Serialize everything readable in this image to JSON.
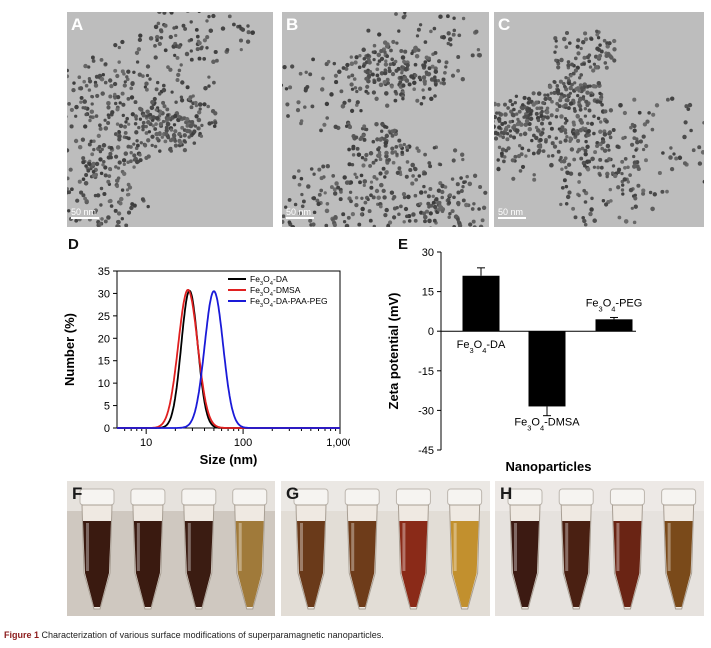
{
  "tem_panels": [
    {
      "label": "A",
      "scale": "50 nm"
    },
    {
      "label": "B",
      "scale": "50 nm"
    },
    {
      "label": "C",
      "scale": "50 nm"
    }
  ],
  "colors": {
    "black": "#000000",
    "red": "#e02020",
    "blue": "#1a1ad8",
    "zeta_bar": "#000000"
  },
  "chart_data": [
    {
      "panel": "D",
      "type": "line",
      "xscale": "log",
      "xlabel": "Size (nm)",
      "ylabel": "Number (%)",
      "xlim": [
        5,
        1000
      ],
      "ylim": [
        0,
        35
      ],
      "xticks": [
        10,
        100,
        1000
      ],
      "xtick_labels": [
        "10",
        "100",
        "1,000"
      ],
      "yticks": [
        0,
        5,
        10,
        15,
        20,
        25,
        30,
        35
      ],
      "legend_position": "top-right",
      "series": [
        {
          "name": "Fe3O4-DA",
          "legend": {
            "a": "Fe",
            "s1": "3",
            "b": "O",
            "s2": "4",
            "c": "-DA"
          },
          "color": "#000000",
          "peak": 28,
          "height": 30.6,
          "sigma": 0.085
        },
        {
          "name": "Fe3O4-DMSA",
          "legend": {
            "a": "Fe",
            "s1": "3",
            "b": "O",
            "s2": "4",
            "c": "-DMSA"
          },
          "color": "#e02020",
          "peak": 27,
          "height": 30.8,
          "sigma": 0.1
        },
        {
          "name": "Fe3O4-DA-PAA-PEG",
          "legend": {
            "a": "Fe",
            "s1": "3",
            "b": "O",
            "s2": "4",
            "c": "-DA-PAA-PEG"
          },
          "color": "#1a1ad8",
          "peak": 50,
          "height": 30.5,
          "sigma": 0.095
        }
      ]
    },
    {
      "panel": "E",
      "type": "bar",
      "xlabel": "Nanoparticles",
      "ylabel": "Zeta potential (mV)",
      "ylim": [
        -45,
        30
      ],
      "yticks": [
        -45,
        -30,
        -15,
        0,
        15,
        30
      ],
      "categories": [
        "Fe3O4-DA",
        "Fe3O4-DMSA",
        "Fe3O4-PEG"
      ],
      "values": [
        21,
        -28.5,
        4.5
      ],
      "errors": [
        3,
        3.5,
        0.7
      ],
      "bar_labels": [
        {
          "a": "Fe",
          "s1": "3",
          "b": "O",
          "s2": "4",
          "c": "-DA"
        },
        {
          "a": "Fe",
          "s1": "3",
          "b": "O",
          "s2": "4",
          "c": "-DMSA"
        },
        {
          "a": "Fe",
          "s1": "3",
          "b": "O",
          "s2": "4",
          "c": "-PEG"
        }
      ]
    }
  ],
  "photo_panels": [
    {
      "label": "F"
    },
    {
      "label": "G"
    },
    {
      "label": "H"
    }
  ],
  "caption": {
    "prefix": "Figure 1",
    "text": "Characterization of various surface modifications of superparamagnetic nanoparticles."
  }
}
